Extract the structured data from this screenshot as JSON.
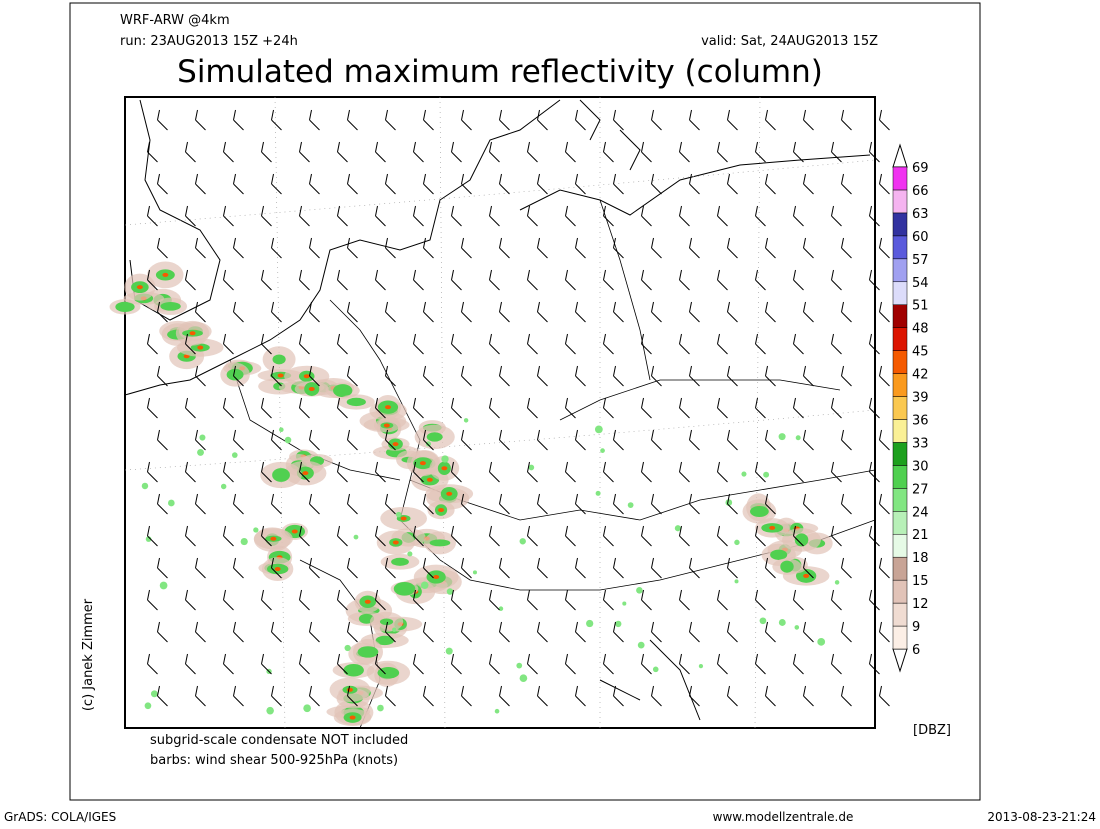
{
  "header": {
    "model": "WRF-ARW @4km",
    "run": "run: 23AUG2013 15Z +24h",
    "valid": "valid: Sat, 24AUG2013 15Z",
    "title": "Simulated maximum reflectivity (column)"
  },
  "notes": [
    "subgrid-scale condensate NOT included",
    "barbs: wind shear 500-925hPa (knots)"
  ],
  "credit": "(c) Janek Zimmer",
  "colorbar": {
    "unit": "[DBZ]",
    "levels": [
      6,
      9,
      12,
      15,
      18,
      21,
      24,
      27,
      30,
      33,
      36,
      39,
      42,
      45,
      48,
      51,
      54,
      57,
      60,
      63,
      66,
      69
    ],
    "colors": [
      "#fcefe6",
      "#f0dcd2",
      "#e1c3b8",
      "#c8a496",
      "#e6fae6",
      "#b8f0b8",
      "#82e682",
      "#50d050",
      "#1ea01e",
      "#faf096",
      "#fac850",
      "#fa9a1e",
      "#f55a00",
      "#dc1400",
      "#a00000",
      "#dcdcfa",
      "#a0a0f0",
      "#5a5adc",
      "#3232a0",
      "#f5b4f0",
      "#f032f0",
      "#a000c8"
    ]
  },
  "footer": {
    "left": "GrADS: COLA/IGES",
    "center": "www.modellzentrale.de",
    "right": "2013-08-23-21:24"
  }
}
